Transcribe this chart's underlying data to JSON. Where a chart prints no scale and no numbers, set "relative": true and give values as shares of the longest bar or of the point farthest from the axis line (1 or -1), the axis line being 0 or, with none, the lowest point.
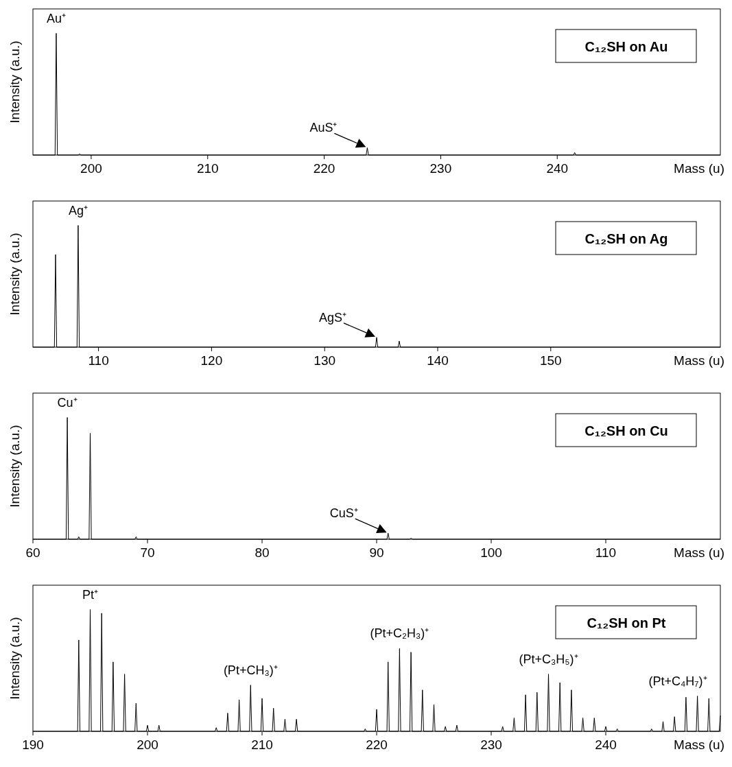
{
  "chart_data": [
    {
      "type": "line",
      "title": "C₁₂SH on Au",
      "xlabel": "Mass (u)",
      "ylabel": "Intensity (a.u.)",
      "relative": true,
      "xlim": [
        195,
        254
      ],
      "xticks": [
        200,
        210,
        220,
        230,
        240
      ],
      "series": [
        {
          "color": "#000000",
          "x": [
            195,
            196.9,
            197,
            197.1,
            198.9,
            199,
            199.1,
            223.6,
            223.7,
            223.8,
            241.4,
            241.5,
            241.6,
            254
          ],
          "values": [
            0,
            0,
            1,
            0,
            0,
            0.01,
            0,
            0,
            0.06,
            0,
            0,
            0.02,
            0,
            0
          ]
        }
      ],
      "annotations": [
        {
          "text": "Au⁺",
          "x": 197,
          "y": 1
        },
        {
          "text": "AuS⁺",
          "x": 223.7,
          "y": 0.06
        }
      ]
    },
    {
      "type": "line",
      "title": "C₁₂SH on Ag",
      "xlabel": "Mass (u)",
      "ylabel": "Intensity (a.u.)",
      "relative": true,
      "xlim": [
        104.2,
        165
      ],
      "xticks": [
        110,
        120,
        130,
        140,
        150
      ],
      "series": [
        {
          "color": "#000000",
          "x": [
            104.2,
            106.1,
            106.2,
            106.3,
            108.1,
            108.2,
            108.3,
            134.5,
            134.6,
            134.7,
            136.5,
            136.6,
            136.7,
            165
          ],
          "values": [
            0,
            0,
            0.76,
            0,
            0,
            1,
            0,
            0,
            0.08,
            0,
            0,
            0.05,
            0,
            0
          ]
        }
      ],
      "annotations": [
        {
          "text": "Ag⁺",
          "x": 108.2,
          "y": 1
        },
        {
          "text": "AgS⁺",
          "x": 134.6,
          "y": 0.08
        }
      ]
    },
    {
      "type": "line",
      "title": "C₁₂SH on Cu",
      "xlabel": "Mass (u)",
      "ylabel": "Intensity (a.u.)",
      "relative": true,
      "xlim": [
        60,
        120
      ],
      "xticks": [
        60,
        70,
        80,
        90,
        100,
        110
      ],
      "series": [
        {
          "color": "#000000",
          "x": [
            60,
            62.9,
            63,
            63.1,
            63.9,
            64,
            64.1,
            64.9,
            65,
            65.1,
            68.9,
            69,
            69.1,
            90.9,
            91,
            91.1,
            92.9,
            93,
            93.1,
            120
          ],
          "values": [
            0,
            0,
            1,
            0,
            0,
            0.02,
            0,
            0,
            0.87,
            0,
            0,
            0.02,
            0,
            0,
            0.05,
            0,
            0,
            0.01,
            0,
            0
          ]
        }
      ],
      "annotations": [
        {
          "text": "Cu⁺",
          "x": 63,
          "y": 1
        },
        {
          "text": "CuS⁺",
          "x": 91,
          "y": 0.05
        }
      ]
    },
    {
      "type": "line",
      "title": "C₁₂SH on Pt",
      "xlabel": "Mass (u)",
      "ylabel": "Intensity (a.u.)",
      "relative": true,
      "xlim": [
        190,
        250
      ],
      "xticks": [
        190,
        200,
        210,
        220,
        230,
        240
      ],
      "series": [
        {
          "color": "#000000",
          "x": [
            190,
            193.9,
            194,
            194.1,
            194.9,
            195,
            195.1,
            195.9,
            196,
            196.1,
            196.9,
            197,
            197.1,
            197.9,
            198,
            198.1,
            198.9,
            199,
            199.1,
            199.9,
            200,
            200.1,
            200.9,
            201,
            201.1,
            205.9,
            206,
            206.1,
            206.9,
            207,
            207.1,
            207.9,
            208,
            208.1,
            208.9,
            209,
            209.1,
            209.9,
            210,
            210.1,
            210.9,
            211,
            211.1,
            211.9,
            212,
            212.1,
            212.9,
            213,
            213.1,
            218.9,
            219,
            219.1,
            219.9,
            220,
            220.1,
            220.9,
            221,
            221.1,
            221.9,
            222,
            222.1,
            222.9,
            223,
            223.1,
            223.9,
            224,
            224.1,
            224.9,
            225,
            225.1,
            225.9,
            226,
            226.1,
            226.9,
            227,
            227.1,
            230.9,
            231,
            231.1,
            231.9,
            232,
            232.1,
            232.9,
            233,
            233.1,
            233.9,
            234,
            234.1,
            234.9,
            235,
            235.1,
            235.9,
            236,
            236.1,
            236.9,
            237,
            237.1,
            237.9,
            238,
            238.1,
            238.9,
            239,
            239.1,
            239.9,
            240,
            240.1,
            240.9,
            241,
            241.1,
            243.9,
            244,
            244.1,
            244.9,
            245,
            245.1,
            245.9,
            246,
            246.1,
            246.9,
            247,
            247.1,
            247.9,
            248,
            248.1,
            248.9,
            249,
            249.1,
            249.9,
            250
          ],
          "values": [
            0,
            0,
            0.75,
            0,
            0,
            1,
            0,
            0,
            0.97,
            0,
            0,
            0.57,
            0,
            0,
            0.47,
            0,
            0,
            0.23,
            0,
            0,
            0.05,
            0,
            0,
            0.05,
            0,
            0,
            0.03,
            0,
            0,
            0.15,
            0,
            0,
            0.26,
            0,
            0,
            0.38,
            0,
            0,
            0.27,
            0,
            0,
            0.19,
            0,
            0,
            0.1,
            0,
            0,
            0.1,
            0,
            0,
            0.02,
            0,
            0,
            0.18,
            0,
            0,
            0.57,
            0,
            0,
            0.68,
            0,
            0,
            0.65,
            0,
            0,
            0.34,
            0,
            0,
            0.22,
            0,
            0,
            0.04,
            0,
            0,
            0.05,
            0,
            0,
            0.04,
            0,
            0,
            0.11,
            0,
            0,
            0.3,
            0,
            0,
            0.32,
            0,
            0,
            0.47,
            0,
            0,
            0.4,
            0,
            0,
            0.34,
            0,
            0,
            0.11,
            0,
            0,
            0.11,
            0,
            0,
            0.04,
            0,
            0,
            0.02,
            0,
            0,
            0.02,
            0,
            0,
            0.08,
            0,
            0,
            0.12,
            0,
            0,
            0.28,
            0,
            0,
            0.29,
            0,
            0,
            0.27,
            0,
            0,
            0.13
          ]
        }
      ],
      "annotations": [
        {
          "text": "Pt⁺",
          "x": 195,
          "y": 1
        },
        {
          "text": "(Pt+CH₃)⁺",
          "x": 209,
          "y": 0.38
        },
        {
          "text": "(Pt+C₂H₃)⁺",
          "x": 222,
          "y": 0.68
        },
        {
          "text": "(Pt+C₃H₅)⁺",
          "x": 235,
          "y": 0.47
        },
        {
          "text": "(Pt+C₄H₇)⁺",
          "x": 248,
          "y": 0.29
        }
      ]
    }
  ]
}
